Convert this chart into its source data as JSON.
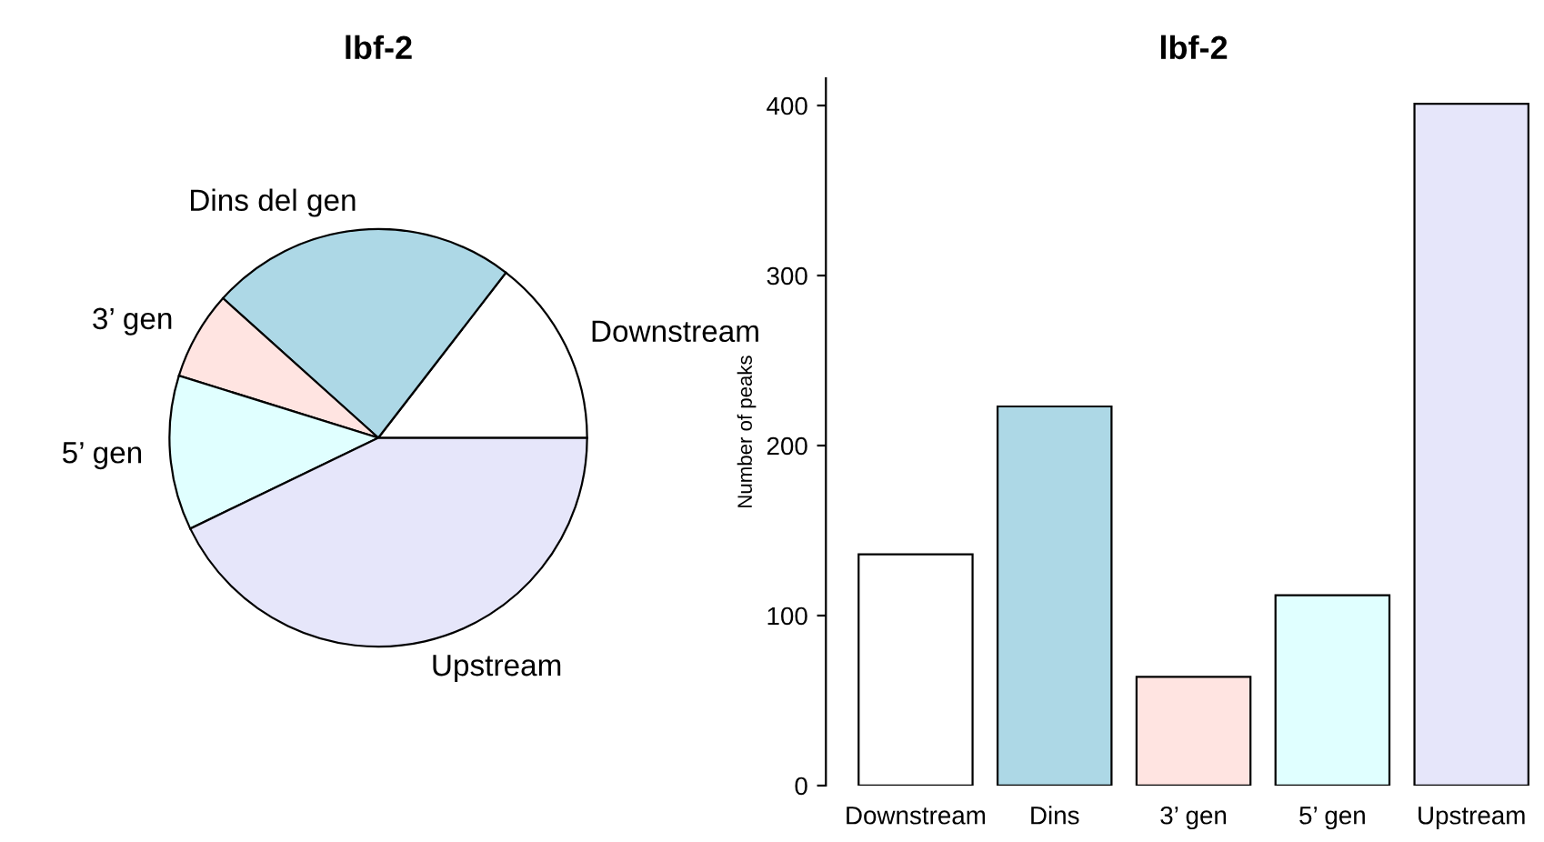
{
  "chart_data": [
    {
      "type": "pie",
      "title": "lbf-2",
      "categories": [
        "Downstream",
        "Dins del gen",
        "3’ gen",
        "5’ gen",
        "Upstream"
      ],
      "values": [
        14.53,
        23.82,
        6.84,
        11.97,
        42.84
      ],
      "colors": [
        "#ffffff",
        "#add8e6",
        "#ffe4e1",
        "#e0ffff",
        "#e6e6fa"
      ]
    },
    {
      "type": "bar",
      "title": "lbf-2",
      "ylabel": "Number of peaks",
      "categories": [
        "Downstream",
        "Dins",
        "3’ gen",
        "5’ gen",
        "Upstream"
      ],
      "values": [
        136,
        223,
        64,
        112,
        401
      ],
      "colors": [
        "#ffffff",
        "#add8e6",
        "#ffe4e1",
        "#e0ffff",
        "#e6e6fa"
      ],
      "ylim": [
        0,
        416
      ],
      "yticks": [
        0,
        100,
        200,
        300,
        400
      ],
      "grid": false
    }
  ]
}
